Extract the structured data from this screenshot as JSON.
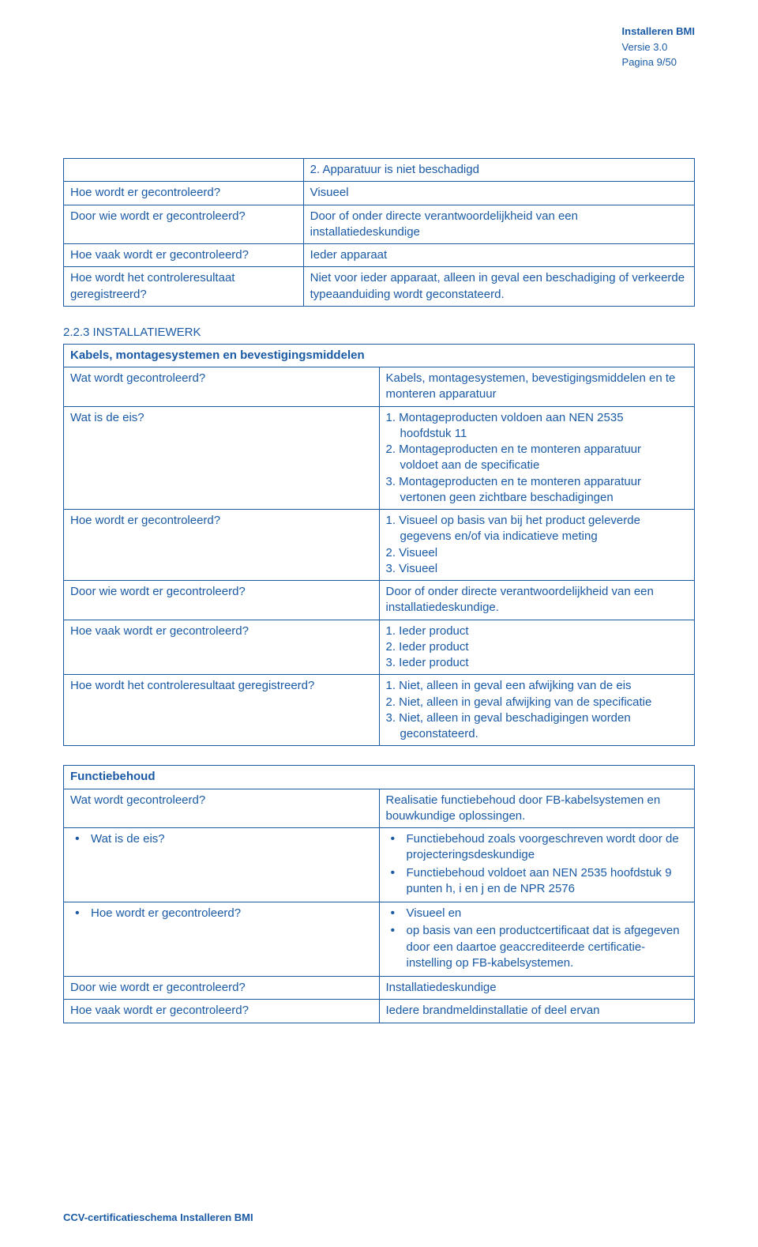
{
  "header": {
    "title": "Installeren BMI",
    "version": "Versie 3.0",
    "pagina": "Pagina 9/50"
  },
  "table1": {
    "rows": [
      {
        "left": "",
        "right": "2. Apparatuur is niet beschadigd"
      },
      {
        "left": "Hoe wordt er gecontroleerd?",
        "right": "Visueel"
      },
      {
        "left": "Door wie wordt er gecontroleerd?",
        "right": "Door of onder directe verantwoordelijkheid van een installatiedeskundige"
      },
      {
        "left": "Hoe vaak wordt er gecontroleerd?",
        "right": "Ieder apparaat"
      },
      {
        "left": "Hoe wordt het controleresultaat geregistreerd?",
        "right": "Niet voor ieder apparaat, alleen in geval een beschadiging of verkeerde typeaanduiding wordt geconstateerd."
      }
    ]
  },
  "section223": "2.2.3 INSTALLATIEWERK",
  "table2": {
    "title": "Kabels, montagesystemen en bevestigingsmiddelen",
    "rows": [
      {
        "left": "Wat wordt gecontroleerd?",
        "right": "Kabels, montagesystemen, bevestigingsmiddelen en te monteren apparatuur"
      },
      {
        "left": "Wat is de eis?",
        "right_lines": [
          "1. Montageproducten voldoen aan NEN 2535",
          "    hoofdstuk 11",
          "2. Montageproducten en te monteren apparatuur",
          "    voldoet aan de specificatie",
          "3. Montageproducten en te monteren apparatuur",
          "    vertonen geen zichtbare beschadigingen"
        ]
      },
      {
        "left": "Hoe wordt er gecontroleerd?",
        "right_lines": [
          "1. Visueel op basis van bij het product geleverde",
          "    gegevens en/of via indicatieve meting",
          "2. Visueel",
          "3. Visueel"
        ]
      },
      {
        "left": "Door wie wordt er gecontroleerd?",
        "right": "Door of onder directe verantwoordelijkheid van een installatiedeskundige."
      },
      {
        "left": "Hoe vaak wordt er gecontroleerd?",
        "right_lines": [
          "1. Ieder product",
          "2. Ieder product",
          "3. Ieder product"
        ]
      },
      {
        "left": "Hoe wordt het controleresultaat geregistreerd?",
        "right_lines": [
          "1. Niet, alleen in geval een afwijking van de eis",
          "2. Niet, alleen in geval afwijking van de specificatie",
          "3. Niet, alleen in geval beschadigingen worden",
          "    geconstateerd."
        ]
      }
    ]
  },
  "table3": {
    "title": "Functiebehoud",
    "rows": [
      {
        "left_plain": "Wat wordt gecontroleerd?",
        "right": "Realisatie functiebehoud door FB-kabelsystemen en bouwkundige oplossingen."
      },
      {
        "left_bullets": [
          "Wat is de eis?"
        ],
        "right_bullets": [
          "Functiebehoud zoals voorgeschreven wordt door de projecteringsdeskundige",
          "Functiebehoud voldoet aan NEN 2535 hoofdstuk 9 punten h, i en j en de NPR 2576"
        ]
      },
      {
        "left_bullets": [
          "Hoe wordt er gecontroleerd?"
        ],
        "right_bullets": [
          "Visueel en",
          "op basis van een productcertificaat dat is afgegeven door een daartoe geaccrediteerde certificatie-instelling op FB-kabelsystemen."
        ]
      },
      {
        "left_plain": "Door wie wordt er gecontroleerd?",
        "right": "Installatiedeskundige"
      },
      {
        "left_plain": "Hoe vaak wordt er gecontroleerd?",
        "right": "Iedere brandmeldinstallatie of deel ervan"
      }
    ]
  },
  "footer": "CCV-certificatieschema Installeren BMI",
  "colors": {
    "text": "#1a5aa5",
    "border": "#1a5aa5",
    "background": "#ffffff"
  }
}
